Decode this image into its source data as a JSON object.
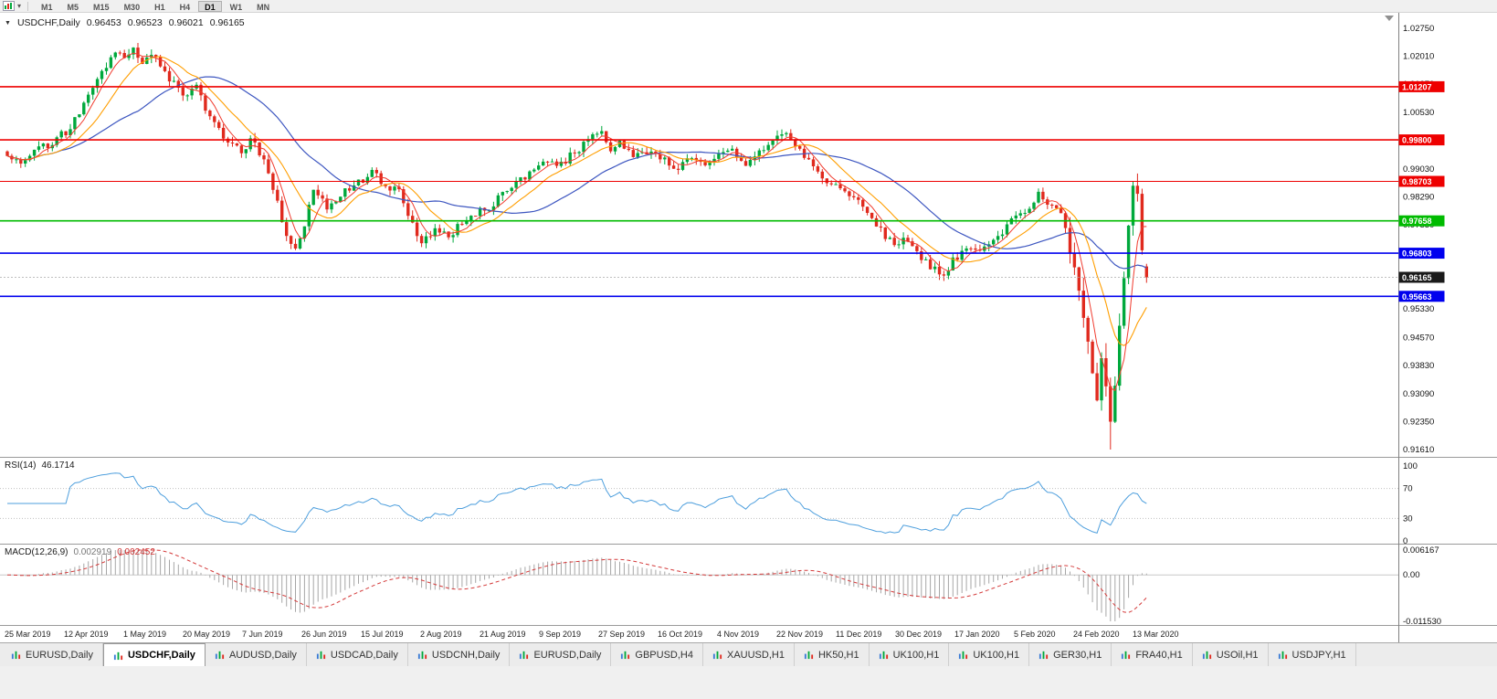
{
  "toolbar": {
    "icons": [
      "chart-window-icon",
      "chart-dropdown-icon"
    ],
    "timeframes": [
      "M1",
      "M5",
      "M15",
      "M30",
      "H1",
      "H4",
      "D1",
      "W1",
      "MN"
    ],
    "active_timeframe": "D1"
  },
  "chart_header": {
    "symbol": "USDCHF,Daily",
    "open": "0.96453",
    "high": "0.96523",
    "low": "0.96021",
    "close": "0.96165"
  },
  "chart_data": {
    "type": "candlestick",
    "symbol": "USDCHF",
    "timeframe": "Daily",
    "colors": {
      "background": "#ffffff",
      "up": "#00a83c",
      "down": "#e02a1e"
    },
    "price_axis": {
      "top": 1.0275,
      "bottom": 0.9161,
      "ticks": [
        "1.02750",
        "1.02010",
        "1.01270",
        "1.00530",
        "0.99030",
        "0.98290",
        "0.97550",
        "0.95330",
        "0.94570",
        "0.93830",
        "0.93090",
        "0.92350",
        "0.91610"
      ]
    },
    "levels": [
      {
        "value": 1.01207,
        "label": "1.01207",
        "line_color": "#ee0000",
        "width": 1.6,
        "box_color": "#ee0000"
      },
      {
        "value": 0.998,
        "label": "0.99800",
        "line_color": "#ee0000",
        "width": 1.6,
        "box_color": "#ee0000"
      },
      {
        "value": 0.98703,
        "label": "0.98703",
        "line_color": "#ee0000",
        "width": 1.1,
        "box_color": "#ee0000"
      },
      {
        "value": 0.97658,
        "label": "0.97658",
        "line_color": "#00bb00",
        "width": 1.6,
        "box_color": "#00bb00"
      },
      {
        "value": 0.96803,
        "label": "0.96803",
        "line_color": "#0000ee",
        "width": 1.6,
        "box_color": "#0000ee"
      },
      {
        "value": 0.96165,
        "label": "0.96165",
        "line_color": "#aaaaaa",
        "width": 0.8,
        "dash": "2,2",
        "box_color": "#1a1a1a"
      },
      {
        "value": 0.95663,
        "label": "0.95663",
        "line_color": "#0000ee",
        "width": 1.6,
        "box_color": "#0000ee"
      }
    ],
    "x_axis_dates": [
      "25 Mar 2019",
      "12 Apr 2019",
      "1 May 2019",
      "20 May 2019",
      "7 Jun 2019",
      "26 Jun 2019",
      "15 Jul 2019",
      "2 Aug 2019",
      "21 Aug 2019",
      "9 Sep 2019",
      "27 Sep 2019",
      "16 Oct 2019",
      "4 Nov 2019",
      "22 Nov 2019",
      "11 Dec 2019",
      "30 Dec 2019",
      "17 Jan 2020",
      "5 Feb 2020",
      "24 Feb 2020",
      "13 Mar 2020"
    ],
    "candles": {
      "count": 254,
      "anchors": [
        [
          0,
          0.9935
        ],
        [
          3,
          0.9915
        ],
        [
          6,
          0.9948
        ],
        [
          9,
          0.9968
        ],
        [
          13,
          1.0002
        ],
        [
          16,
          1.0046
        ],
        [
          19,
          1.0124
        ],
        [
          22,
          1.0175
        ],
        [
          24,
          1.0212
        ],
        [
          26,
          1.0195
        ],
        [
          28,
          1.0222
        ],
        [
          30,
          1.0185
        ],
        [
          33,
          1.0205
        ],
        [
          36,
          1.0142
        ],
        [
          39,
          1.0098
        ],
        [
          42,
          1.0118
        ],
        [
          45,
          1.0038
        ],
        [
          48,
          0.9992
        ],
        [
          52,
          0.9948
        ],
        [
          54,
          0.9982
        ],
        [
          57,
          0.9932
        ],
        [
          60,
          0.9815
        ],
        [
          62,
          0.9722
        ],
        [
          64,
          0.97
        ],
        [
          66,
          0.9758
        ],
        [
          68,
          0.9846
        ],
        [
          71,
          0.9802
        ],
        [
          74,
          0.9838
        ],
        [
          78,
          0.9866
        ],
        [
          81,
          0.9892
        ],
        [
          84,
          0.9862
        ],
        [
          87,
          0.9842
        ],
        [
          90,
          0.9762
        ],
        [
          92,
          0.9707
        ],
        [
          95,
          0.9747
        ],
        [
          98,
          0.9723
        ],
        [
          101,
          0.9762
        ],
        [
          104,
          0.9787
        ],
        [
          107,
          0.9802
        ],
        [
          110,
          0.9837
        ],
        [
          113,
          0.9865
        ],
        [
          117,
          0.9897
        ],
        [
          120,
          0.9927
        ],
        [
          122,
          0.9907
        ],
        [
          125,
          0.9937
        ],
        [
          128,
          0.9966
        ],
        [
          130,
          0.9991
        ],
        [
          132,
          1.0005
        ],
        [
          134,
          0.9957
        ],
        [
          136,
          0.9981
        ],
        [
          139,
          0.9931
        ],
        [
          143,
          0.9953
        ],
        [
          146,
          0.9927
        ],
        [
          149,
          0.9901
        ],
        [
          152,
          0.9937
        ],
        [
          155,
          0.9907
        ],
        [
          158,
          0.9937
        ],
        [
          161,
          0.9957
        ],
        [
          164,
          0.9907
        ],
        [
          167,
          0.9946
        ],
        [
          169,
          0.9967
        ],
        [
          171,
          0.9991
        ],
        [
          173,
          0.9997
        ],
        [
          176,
          0.9947
        ],
        [
          179,
          0.9907
        ],
        [
          182,
          0.9871
        ],
        [
          185,
          0.9846
        ],
        [
          188,
          0.9827
        ],
        [
          191,
          0.9791
        ],
        [
          194,
          0.9741
        ],
        [
          197,
          0.9701
        ],
        [
          199,
          0.9717
        ],
        [
          202,
          0.9681
        ],
        [
          205,
          0.9646
        ],
        [
          208,
          0.9626
        ],
        [
          210,
          0.9661
        ],
        [
          213,
          0.9696
        ],
        [
          216,
          0.9686
        ],
        [
          219,
          0.9716
        ],
        [
          221,
          0.9737
        ],
        [
          224,
          0.9776
        ],
        [
          226,
          0.9791
        ],
        [
          229,
          0.9836
        ],
        [
          231,
          0.9816
        ],
        [
          234,
          0.9781
        ],
        [
          236,
          0.9691
        ],
        [
          238,
          0.9581
        ],
        [
          240,
          0.9451
        ],
        [
          241,
          0.9366
        ],
        [
          242,
          0.9301
        ],
        [
          243,
          0.9406
        ],
        [
          244,
          0.9331
        ],
        [
          245,
          0.9231
        ],
        [
          246,
          0.9321
        ],
        [
          247,
          0.9481
        ],
        [
          248,
          0.9621
        ],
        [
          249,
          0.9751
        ],
        [
          250,
          0.9868
        ],
        [
          251,
          0.9831
        ],
        [
          252,
          0.9701
        ],
        [
          253,
          0.96165
        ]
      ],
      "crash_wick": {
        "index": 245,
        "low": 0.9161
      },
      "last": {
        "open": 0.96453,
        "high": 0.96523,
        "low": 0.96021,
        "close": 0.96165
      }
    },
    "moving_averages": [
      {
        "name": "fast",
        "period": 5,
        "color": "#f03b2e"
      },
      {
        "name": "medium",
        "period": 12,
        "color": "#ff9e00"
      },
      {
        "name": "slow",
        "period": 30,
        "color": "#3d56c0"
      }
    ],
    "indicators": {
      "rsi": {
        "label": "RSI(14)",
        "value": "46.1714",
        "period": 14,
        "levels": [
          "100",
          "70",
          "30",
          "0"
        ],
        "color": "#4e9fdd"
      },
      "macd": {
        "label": "MACD(12,26,9)",
        "main_value": "0.002919",
        "signal_value": "0.002452",
        "axis_labels": [
          "0.006167",
          "0.00",
          "-0.011530"
        ],
        "range": {
          "max": 0.006167,
          "min": -0.01153
        },
        "histogram_color": "#a6a6a6",
        "signal_color": "#d43a3a"
      }
    }
  },
  "tabs": [
    {
      "label": "EURUSD,Daily",
      "active": false
    },
    {
      "label": "USDCHF,Daily",
      "active": true
    },
    {
      "label": "AUDUSD,Daily",
      "active": false
    },
    {
      "label": "USDCAD,Daily",
      "active": false
    },
    {
      "label": "USDCNH,Daily",
      "active": false
    },
    {
      "label": "EURUSD,Daily",
      "active": false
    },
    {
      "label": "GBPUSD,H4",
      "active": false
    },
    {
      "label": "XAUUSD,H1",
      "active": false
    },
    {
      "label": "HK50,H1",
      "active": false
    },
    {
      "label": "UK100,H1",
      "active": false
    },
    {
      "label": "UK100,H1",
      "active": false
    },
    {
      "label": "GER30,H1",
      "active": false
    },
    {
      "label": "FRA40,H1",
      "active": false
    },
    {
      "label": "USOil,H1",
      "active": false
    },
    {
      "label": "USDJPY,H1",
      "active": false
    }
  ]
}
